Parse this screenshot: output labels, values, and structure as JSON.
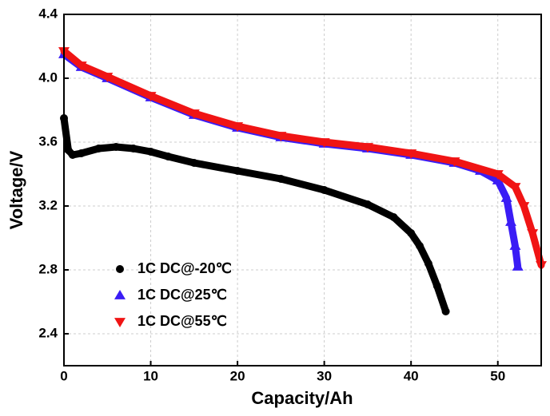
{
  "chart_data": {
    "type": "line",
    "x_label": "Capacity/Ah",
    "y_label": "Voltage/V",
    "xlim": [
      0,
      55
    ],
    "ylim": [
      2.2,
      4.4
    ],
    "xticks": [
      0,
      10,
      20,
      30,
      40,
      50
    ],
    "yticks": [
      2.4,
      2.8,
      3.2,
      3.6,
      {
        "value": 4,
        "label": "4.0"
      },
      4.4
    ],
    "grid": true,
    "legend": "lower left",
    "series": [
      {
        "name": "1C DC@-20℃",
        "color": "#000000",
        "marker": "circle",
        "x": [
          0,
          0.5,
          1,
          2,
          4,
          6,
          8,
          10,
          12,
          15,
          20,
          25,
          30,
          35,
          38,
          40,
          41,
          42,
          43,
          44
        ],
        "values": [
          3.75,
          3.55,
          3.52,
          3.53,
          3.56,
          3.57,
          3.56,
          3.54,
          3.51,
          3.47,
          3.42,
          3.37,
          3.3,
          3.21,
          3.13,
          3.03,
          2.95,
          2.84,
          2.7,
          2.54
        ]
      },
      {
        "name": "1C DC@25℃",
        "color": "#3a1cf5",
        "marker": "triangle-up",
        "x": [
          0,
          2,
          5,
          10,
          15,
          20,
          25,
          30,
          35,
          40,
          45,
          48,
          50,
          51,
          51.5,
          52,
          52.3
        ],
        "values": [
          4.15,
          4.07,
          4.0,
          3.88,
          3.77,
          3.69,
          3.63,
          3.59,
          3.56,
          3.52,
          3.47,
          3.42,
          3.36,
          3.25,
          3.1,
          2.95,
          2.82
        ]
      },
      {
        "name": "1C DC@55℃",
        "color": "#f01414",
        "marker": "triangle-down",
        "x": [
          0,
          2,
          5,
          10,
          15,
          20,
          25,
          30,
          35,
          40,
          45,
          50,
          52,
          53,
          54,
          55
        ],
        "values": [
          4.17,
          4.08,
          4.01,
          3.89,
          3.78,
          3.7,
          3.64,
          3.6,
          3.57,
          3.53,
          3.48,
          3.4,
          3.32,
          3.2,
          3.03,
          2.83
        ]
      }
    ]
  }
}
